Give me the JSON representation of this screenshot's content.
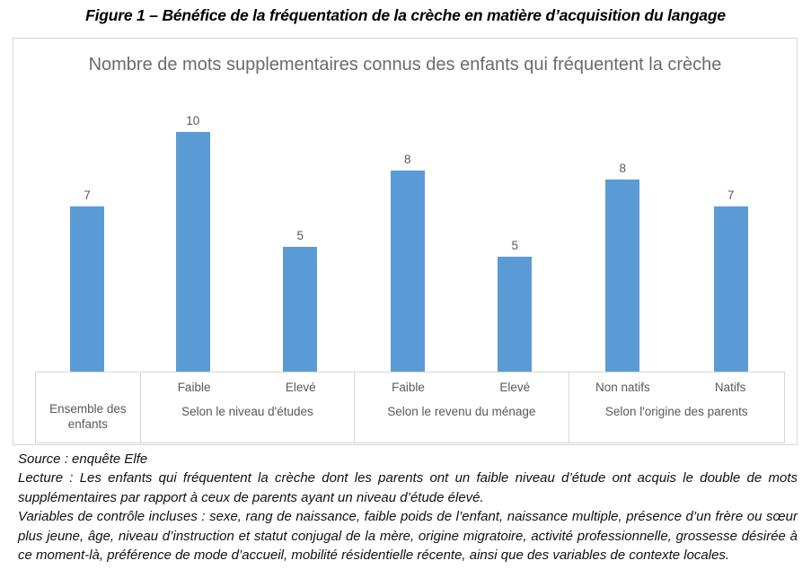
{
  "figure": {
    "title": "Figure 1 – Bénéfice de la fréquentation de la crèche en matière d’acquisition du langage"
  },
  "chart_data": {
    "type": "bar",
    "title": "Nombre de mots supplementaires connus des enfants qui fréquentent la crèche",
    "bar_color": "#5B9BD5",
    "label_color": "#595959",
    "ylim": [
      0,
      11
    ],
    "grid": false,
    "value_labels_shown": true,
    "legend": "none",
    "categories": [
      "Ensemble des enfants",
      "Faible (niveau d'études)",
      "Elevé (niveau d'études)",
      "Faible (revenu du ménage)",
      "Elevé (revenu du ménage)",
      "Non natifs",
      "Natifs"
    ],
    "values": [
      7,
      10,
      5,
      8,
      5,
      8,
      7
    ],
    "groups": [
      {
        "label": "Ensemble des enfants",
        "bars": [
          {
            "sublabel": "",
            "value_label": "7",
            "value": 6.9
          }
        ]
      },
      {
        "label": "Selon le niveau d'études",
        "bars": [
          {
            "sublabel": "Faible",
            "value_label": "10",
            "value": 10.0
          },
          {
            "sublabel": "Elevé",
            "value_label": "5",
            "value": 5.2
          }
        ]
      },
      {
        "label": "Selon le revenu du ménage",
        "bars": [
          {
            "sublabel": "Faible",
            "value_label": "8",
            "value": 8.4
          },
          {
            "sublabel": "Elevé",
            "value_label": "5",
            "value": 4.8
          }
        ]
      },
      {
        "label": "Selon l'origine des parents",
        "bars": [
          {
            "sublabel": "Non natifs",
            "value_label": "8",
            "value": 8.0
          },
          {
            "sublabel": "Natifs",
            "value_label": "7",
            "value": 6.9
          }
        ]
      }
    ]
  },
  "notes": {
    "source": "Source : enquête Elfe",
    "lecture": "Lecture : Les enfants qui fréquentent la crèche dont les parents ont un faible niveau d’étude ont acquis le double de mots supplémentaires par rapport à ceux de parents ayant un niveau d’étude élevé.",
    "variables": "Variables de contrôle incluses : sexe, rang de naissance, faible poids de l’enfant, naissance multiple, présence d’un frère ou sœur plus jeune, âge, niveau d’instruction et statut conjugal de la mère, origine migratoire, activité professionnelle, grossesse désirée à ce moment-là, préférence de mode d’accueil, mobilité résidentielle récente, ainsi que des variables de contexte locales."
  }
}
